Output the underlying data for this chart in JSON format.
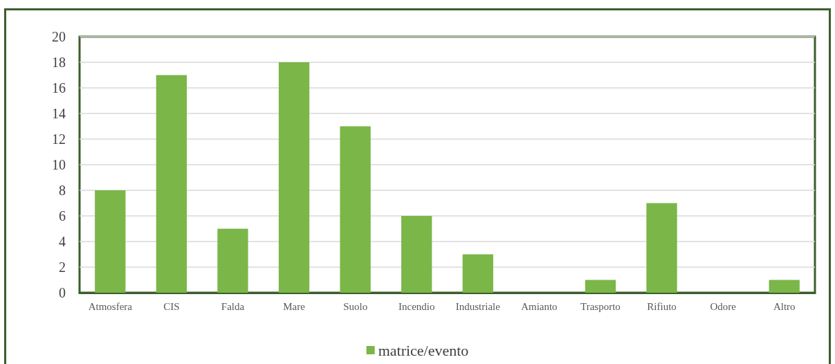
{
  "chart_data": {
    "type": "bar",
    "categories": [
      "Atmosfera",
      "CIS",
      "Falda",
      "Mare",
      "Suolo",
      "Incendio",
      "Industriale",
      "Amianto",
      "Trasporto",
      "Rifiuto",
      "Odore",
      "Altro"
    ],
    "series": [
      {
        "name": "matrice/evento",
        "color": "#7ab648",
        "values": [
          8,
          17,
          5,
          18,
          13,
          6,
          3,
          0,
          1,
          7,
          0,
          1
        ]
      }
    ],
    "ylim": [
      0,
      20
    ],
    "yticks": [
      0,
      2,
      4,
      6,
      8,
      10,
      12,
      14,
      16,
      18,
      20
    ],
    "grid": "y",
    "legend": "bottom"
  }
}
